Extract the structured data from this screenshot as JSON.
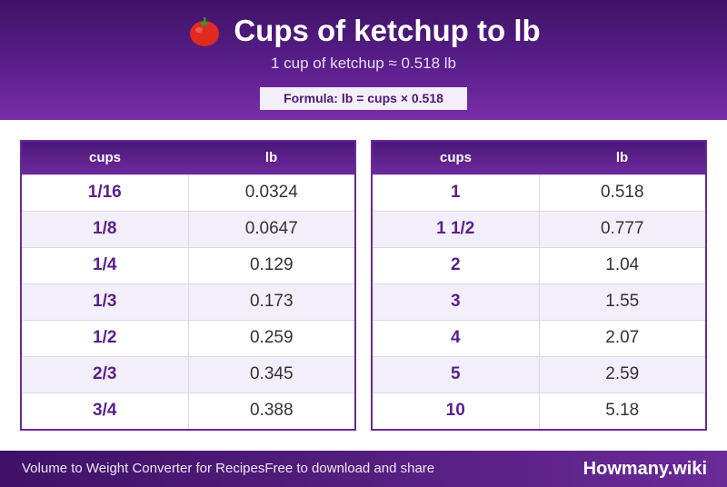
{
  "header": {
    "title": "Cups of ketchup to lb",
    "subtitle": "1 cup of ketchup ≈ 0.518 lb",
    "formula": "Formula: lb = cups × 0.518",
    "icon": "tomato-icon"
  },
  "tables": {
    "left": {
      "headers": [
        "cups",
        "lb"
      ],
      "rows": [
        [
          "1/16",
          "0.0324"
        ],
        [
          "1/8",
          "0.0647"
        ],
        [
          "1/4",
          "0.129"
        ],
        [
          "1/3",
          "0.173"
        ],
        [
          "1/2",
          "0.259"
        ],
        [
          "2/3",
          "0.345"
        ],
        [
          "3/4",
          "0.388"
        ]
      ]
    },
    "right": {
      "headers": [
        "cups",
        "lb"
      ],
      "rows": [
        [
          "1",
          "0.518"
        ],
        [
          "1 1/2",
          "0.777"
        ],
        [
          "2",
          "1.04"
        ],
        [
          "3",
          "1.55"
        ],
        [
          "4",
          "2.07"
        ],
        [
          "5",
          "2.59"
        ],
        [
          "10",
          "5.18"
        ]
      ]
    }
  },
  "footer": {
    "left_text_1": "Volume to Weight Converter for Recipes",
    "left_text_2": "Free to download and share",
    "brand": "Howmany.wiki"
  },
  "colors": {
    "primary": "#5a1f8c",
    "header_dark": "#3e1266",
    "row_alt": "#f3effa"
  }
}
